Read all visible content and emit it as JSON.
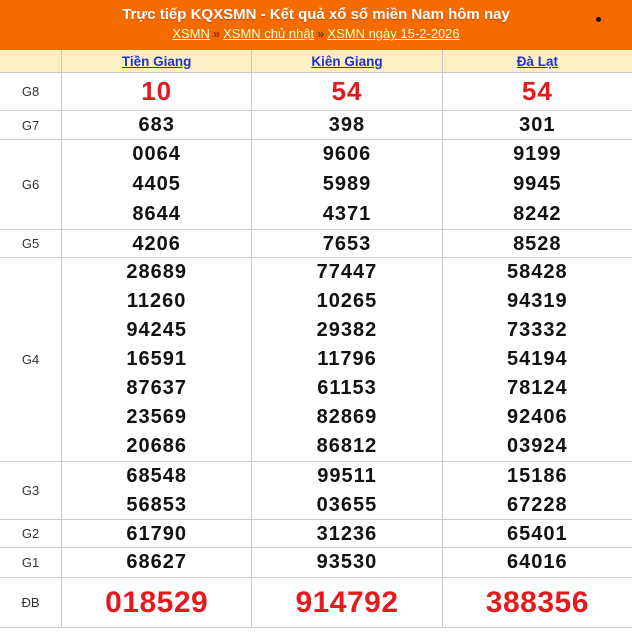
{
  "banner": {
    "title": "Trực tiếp KQXSMN - Kết quả xổ số miền Nam hôm nay",
    "breadcrumb": {
      "link1": "XSMN",
      "sep1": "»",
      "link2": "XSMN chủ nhật",
      "sep2": "»",
      "link3": "XSMN ngày 15-2-2026"
    }
  },
  "columns": [
    "Tiền Giang",
    "Kiên Giang",
    "Đà Lạt"
  ],
  "prizes": [
    {
      "label": "G8",
      "lines": [
        [
          "10",
          "54",
          "54"
        ]
      ]
    },
    {
      "label": "G7",
      "lines": [
        [
          "683",
          "398",
          "301"
        ]
      ]
    },
    {
      "label": "G6",
      "lines": [
        [
          "0064",
          "9606",
          "9199"
        ],
        [
          "4405",
          "5989",
          "9945"
        ],
        [
          "8644",
          "4371",
          "8242"
        ]
      ]
    },
    {
      "label": "G5",
      "lines": [
        [
          "4206",
          "7653",
          "8528"
        ]
      ]
    },
    {
      "label": "G4",
      "lines": [
        [
          "28689",
          "77447",
          "58428"
        ],
        [
          "11260",
          "10265",
          "94319"
        ],
        [
          "94245",
          "29382",
          "73332"
        ],
        [
          "16591",
          "11796",
          "54194"
        ],
        [
          "87637",
          "61153",
          "78124"
        ],
        [
          "23569",
          "82869",
          "92406"
        ],
        [
          "20686",
          "86812",
          "03924"
        ]
      ]
    },
    {
      "label": "G3",
      "lines": [
        [
          "68548",
          "99511",
          "15186"
        ],
        [
          "56853",
          "03655",
          "67228"
        ]
      ]
    },
    {
      "label": "G2",
      "lines": [
        [
          "61790",
          "31236",
          "65401"
        ]
      ]
    },
    {
      "label": "G1",
      "lines": [
        [
          "68627",
          "93530",
          "64016"
        ]
      ]
    },
    {
      "label": "ĐB",
      "lines": [
        [
          "018529",
          "914792",
          "388356"
        ]
      ]
    }
  ],
  "colors": {
    "banner_bg": "#F56B00",
    "header_row_bg": "#FAF0C3",
    "highlight_red": "#E31B1F",
    "link_blue": "#2233CC",
    "border": "#CCCCCC"
  }
}
